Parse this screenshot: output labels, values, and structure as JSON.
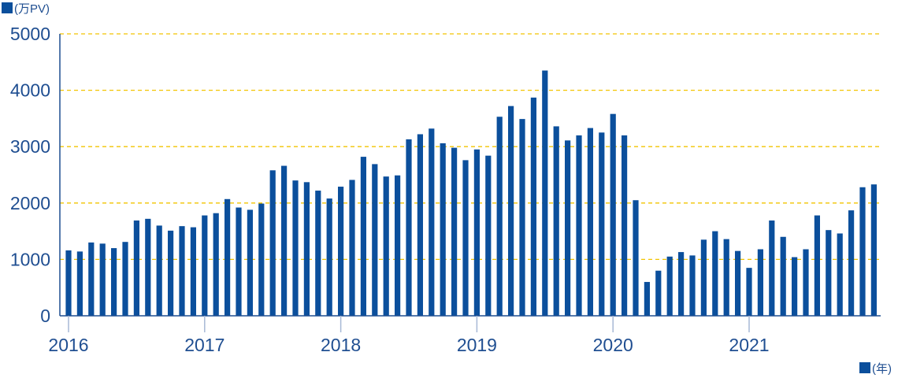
{
  "chart_data": {
    "type": "bar",
    "ylabel": "(万PV)",
    "xlabel": "(年)",
    "ylim": [
      0,
      5000
    ],
    "yticks": [
      "0",
      "1000",
      "2000",
      "3000",
      "4000",
      "5000"
    ],
    "xticks": [
      "2016",
      "2017",
      "2018",
      "2019",
      "2020",
      "2021"
    ],
    "grid": true,
    "colors": {
      "bar": "#0b4f9c",
      "grid": "#f2c400",
      "axis": "#1f4e91",
      "tick": "#a7b9d6"
    },
    "values": [
      1160,
      1140,
      1300,
      1280,
      1200,
      1310,
      1690,
      1720,
      1600,
      1510,
      1590,
      1570,
      1780,
      1820,
      2070,
      1920,
      1880,
      1990,
      2580,
      2660,
      2400,
      2370,
      2220,
      2080,
      2290,
      2410,
      2820,
      2690,
      2470,
      2490,
      3130,
      3220,
      3320,
      3060,
      2980,
      2760,
      2950,
      2840,
      3530,
      3720,
      3490,
      3870,
      4350,
      3360,
      3110,
      3200,
      3330,
      3250,
      3580,
      3200,
      2050,
      600,
      800,
      1050,
      1130,
      1070,
      1350,
      1500,
      1360,
      1150,
      850,
      1180,
      1690,
      1400,
      1040,
      1180,
      1780,
      1520,
      1460,
      1870,
      2280,
      2330
    ]
  }
}
